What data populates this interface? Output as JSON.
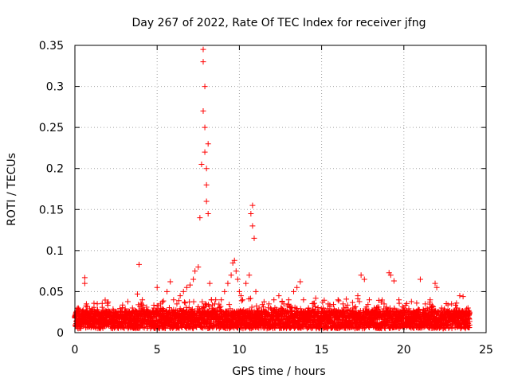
{
  "chart_data": {
    "type": "scatter",
    "title": "Day 267 of 2022, Rate Of TEC Index for receiver jfng",
    "xlabel": "GPS time / hours",
    "ylabel": "ROTI / TECUs",
    "xlim": [
      0,
      25
    ],
    "ylim": [
      0,
      0.35
    ],
    "x_ticks": [
      0,
      5,
      10,
      15,
      20,
      25
    ],
    "x_tick_labels": [
      "0",
      "5",
      "10",
      "15",
      "20",
      "25"
    ],
    "y_ticks": [
      0,
      0.05,
      0.1,
      0.15,
      0.2,
      0.25,
      0.3,
      0.35
    ],
    "y_tick_labels": [
      "0",
      "0.05",
      "0.1",
      "0.15",
      "0.2",
      "0.25",
      "0.3",
      "0.35"
    ],
    "grid": true,
    "marker": "+",
    "series": [
      {
        "name": "ROTI",
        "color": "#ff0000",
        "x": [
          0.0,
          0.1,
          0.2,
          0.3,
          0.4,
          0.5,
          0.6,
          0.6,
          0.7,
          0.8,
          1.0,
          1.2,
          1.4,
          1.6,
          1.8,
          2.0,
          2.3,
          2.6,
          2.9,
          3.2,
          3.5,
          3.8,
          3.9,
          4.1,
          4.4,
          4.6,
          4.8,
          5.0,
          5.2,
          5.4,
          5.6,
          5.8,
          6.0,
          6.2,
          6.4,
          6.6,
          6.8,
          7.0,
          7.2,
          7.3,
          7.5,
          7.6,
          7.7,
          7.8,
          7.8,
          7.8,
          7.9,
          7.9,
          7.9,
          8.0,
          8.0,
          8.0,
          8.1,
          8.1,
          8.2,
          8.3,
          8.5,
          8.7,
          8.9,
          9.1,
          9.3,
          9.5,
          9.6,
          9.7,
          9.8,
          9.9,
          10.0,
          10.1,
          10.2,
          10.4,
          10.6,
          10.7,
          10.8,
          10.8,
          10.9,
          11.0,
          11.2,
          11.5,
          11.8,
          12.1,
          12.4,
          12.7,
          13.0,
          13.3,
          13.5,
          13.7,
          13.9,
          14.2,
          14.5,
          14.8,
          15.1,
          15.4,
          15.7,
          16.0,
          16.3,
          16.6,
          16.9,
          17.2,
          17.4,
          17.6,
          17.9,
          18.2,
          18.5,
          18.8,
          19.1,
          19.2,
          19.4,
          19.7,
          20.0,
          20.3,
          20.6,
          20.9,
          21.0,
          21.3,
          21.6,
          21.9,
          22.0,
          22.3,
          22.6,
          22.9,
          23.2,
          23.4,
          23.6,
          23.9,
          24.0
        ],
        "y": [
          0.018,
          0.025,
          0.03,
          0.02,
          0.022,
          0.028,
          0.06,
          0.067,
          0.035,
          0.02,
          0.024,
          0.018,
          0.022,
          0.02,
          0.017,
          0.021,
          0.016,
          0.019,
          0.02,
          0.022,
          0.03,
          0.047,
          0.083,
          0.04,
          0.025,
          0.02,
          0.03,
          0.055,
          0.035,
          0.028,
          0.05,
          0.062,
          0.04,
          0.035,
          0.045,
          0.05,
          0.055,
          0.058,
          0.065,
          0.075,
          0.08,
          0.14,
          0.205,
          0.27,
          0.33,
          0.345,
          0.3,
          0.25,
          0.22,
          0.2,
          0.18,
          0.16,
          0.145,
          0.23,
          0.06,
          0.04,
          0.035,
          0.03,
          0.04,
          0.05,
          0.06,
          0.07,
          0.085,
          0.088,
          0.075,
          0.065,
          0.05,
          0.045,
          0.04,
          0.06,
          0.07,
          0.145,
          0.155,
          0.13,
          0.115,
          0.05,
          0.03,
          0.025,
          0.035,
          0.04,
          0.045,
          0.035,
          0.04,
          0.05,
          0.055,
          0.062,
          0.04,
          0.03,
          0.025,
          0.02,
          0.03,
          0.035,
          0.025,
          0.04,
          0.035,
          0.028,
          0.03,
          0.045,
          0.07,
          0.065,
          0.04,
          0.03,
          0.025,
          0.035,
          0.073,
          0.07,
          0.063,
          0.04,
          0.03,
          0.02,
          0.025,
          0.028,
          0.065,
          0.035,
          0.04,
          0.06,
          0.055,
          0.03,
          0.025,
          0.035,
          0.03,
          0.045,
          0.044,
          0.03,
          0.025
        ]
      }
    ],
    "dense_band": {
      "x_range": [
        0,
        24
      ],
      "y_floor": 0.005,
      "note": "dense continuous cloud of points between ~0.005 and ~0.03 across the whole day"
    }
  }
}
